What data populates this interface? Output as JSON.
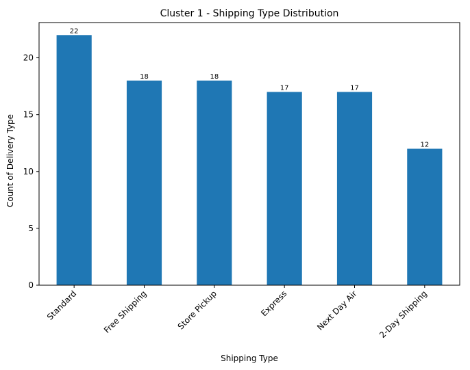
{
  "chart_data": {
    "type": "bar",
    "title": "Cluster 1 - Shipping Type Distribution",
    "xlabel": "Shipping Type",
    "ylabel": "Count of Delivery Type",
    "categories": [
      "Standard",
      "Free Shipping",
      "Store Pickup",
      "Express",
      "Next Day Air",
      "2-Day Shipping"
    ],
    "values": [
      22,
      18,
      18,
      17,
      17,
      12
    ],
    "ylim": [
      0,
      23.1
    ],
    "yticks": [
      0,
      5,
      10,
      15,
      20
    ],
    "grid": false,
    "bar_color": "#1f77b4"
  }
}
